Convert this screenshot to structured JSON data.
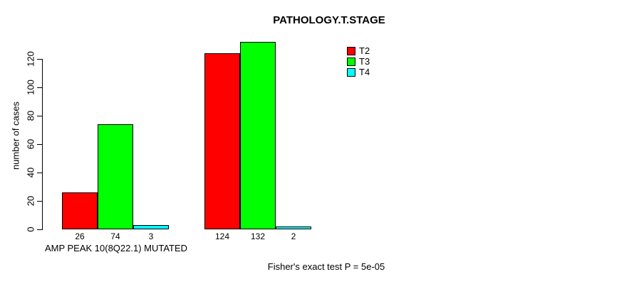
{
  "page": {
    "title": "PATHOLOGY.T.STAGE",
    "footer": "Fisher's exact test P = 5e-05"
  },
  "colors": {
    "t2": "#ff0000",
    "t3": "#00ff00",
    "t4": "#00ffff",
    "axis": "#000000",
    "background": "#ffffff"
  },
  "chart_data": {
    "type": "bar",
    "title": "PATHOLOGY.T.STAGE",
    "xlabel": "",
    "ylabel": "number of cases",
    "categories": [
      "AMP PEAK 10(8Q22.1) MUTATED",
      ""
    ],
    "series": [
      {
        "name": "T2",
        "color": "#ff0000",
        "values": [
          26,
          124
        ]
      },
      {
        "name": "T3",
        "color": "#00ff00",
        "values": [
          74,
          132
        ]
      },
      {
        "name": "T4",
        "color": "#00ffff",
        "values": [
          3,
          2
        ]
      }
    ],
    "bar_value_labels": [
      [
        26,
        74,
        3
      ],
      [
        124,
        132,
        2
      ]
    ],
    "yticks": [
      0,
      20,
      40,
      60,
      80,
      100,
      120
    ],
    "ylim": [
      0,
      130
    ],
    "grid": false,
    "legend": [
      "T2",
      "T3",
      "T4"
    ],
    "legend_position": "top-right-outside",
    "annotation": "Fisher's exact test P = 5e-05"
  }
}
